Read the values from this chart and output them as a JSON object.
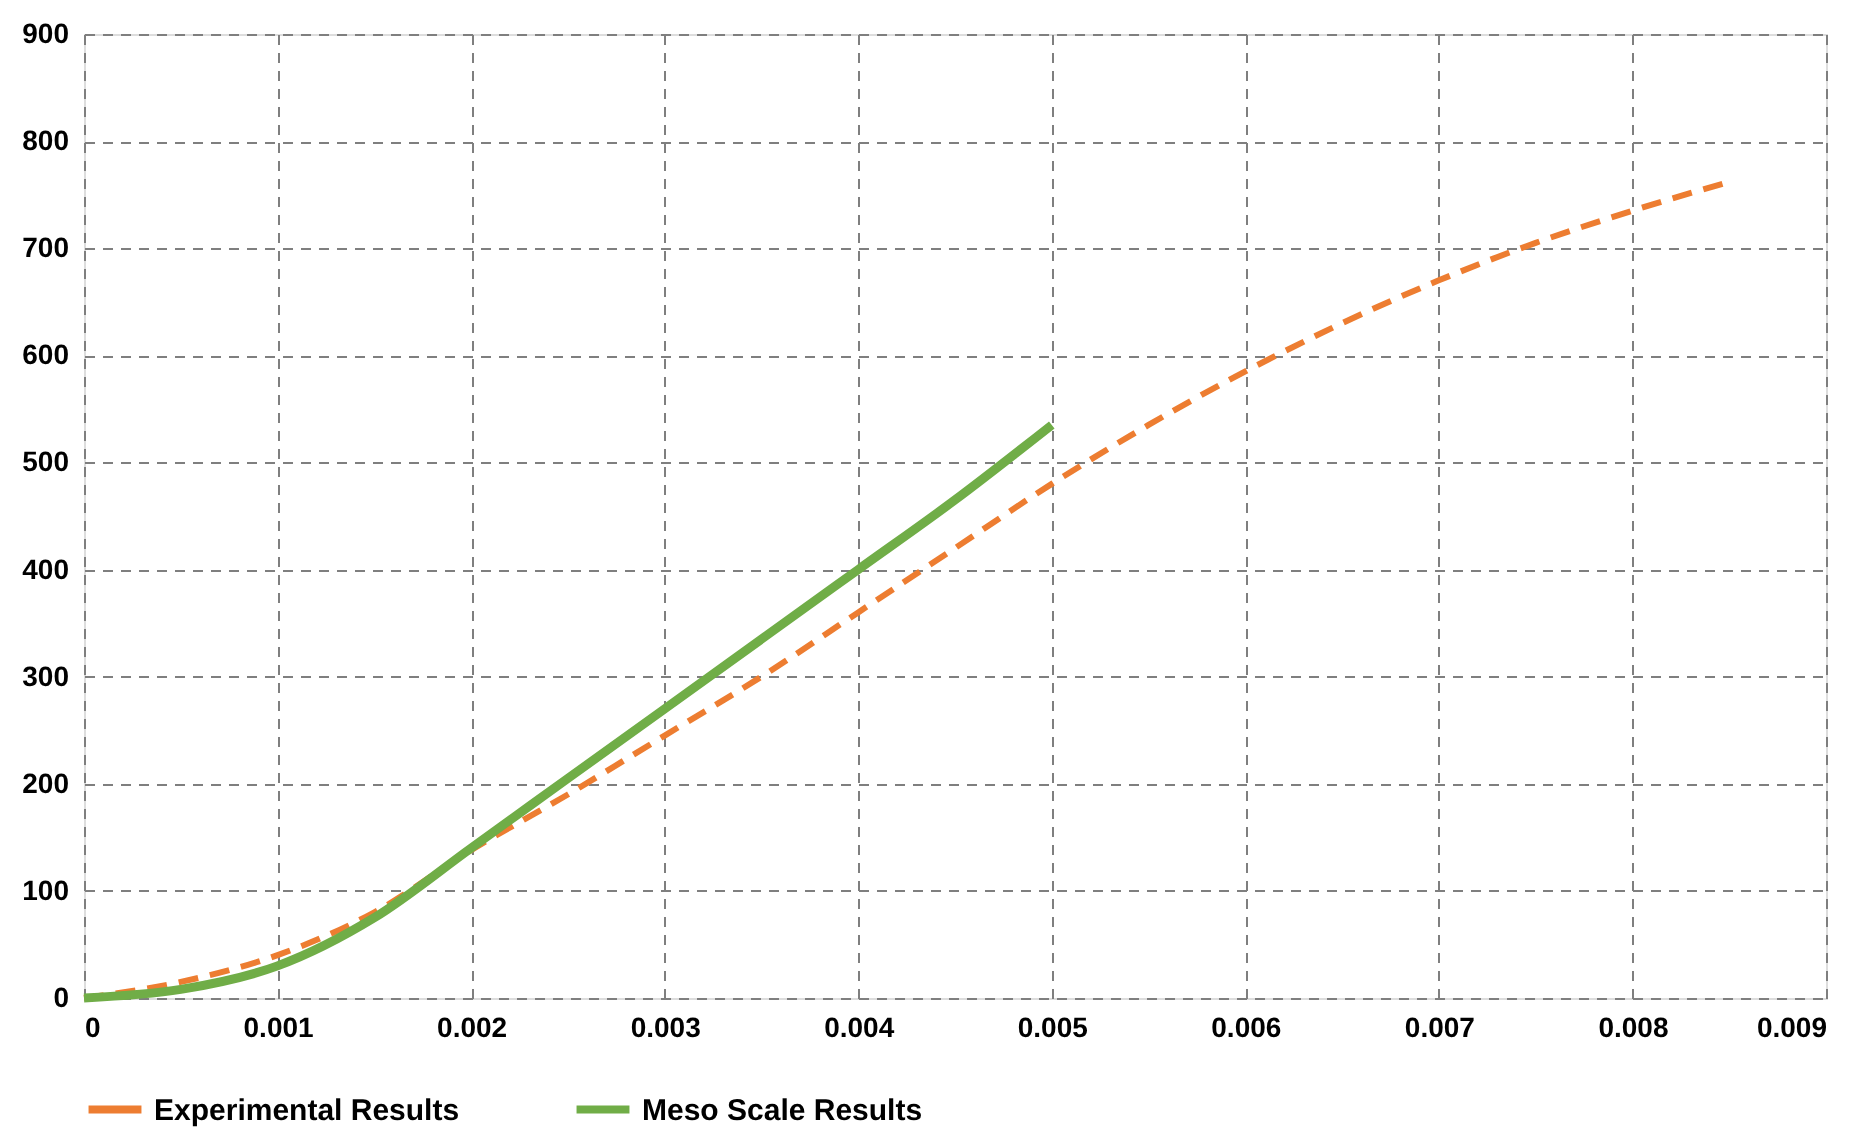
{
  "chart_data": {
    "type": "line",
    "xlim": [
      0,
      0.009
    ],
    "ylim": [
      0,
      900
    ],
    "xticks": [
      0,
      0.001,
      0.002,
      0.003,
      0.004,
      0.005,
      0.006,
      0.007,
      0.008,
      0.009
    ],
    "yticks": [
      0,
      100,
      200,
      300,
      400,
      500,
      600,
      700,
      800,
      900
    ],
    "grid": true,
    "legend": "bottom",
    "series": [
      {
        "name": "Experimental Results",
        "color": "#ed7d31",
        "line_style": "dashed",
        "x": [
          0,
          0.0005,
          0.001,
          0.0015,
          0.002,
          0.0025,
          0.003,
          0.0035,
          0.004,
          0.0045,
          0.005,
          0.0055,
          0.006,
          0.0065,
          0.007,
          0.0075,
          0.008,
          0.0085
        ],
        "values": [
          0,
          15,
          40,
          80,
          138,
          190,
          245,
          300,
          360,
          420,
          480,
          535,
          585,
          630,
          670,
          705,
          735,
          762
        ]
      },
      {
        "name": "Meso Scale Results",
        "color": "#70ad47",
        "line_style": "solid",
        "x": [
          0,
          0.0005,
          0.001,
          0.0015,
          0.002,
          0.0025,
          0.003,
          0.0035,
          0.004,
          0.0045,
          0.005
        ],
        "values": [
          0,
          8,
          30,
          75,
          140,
          205,
          270,
          335,
          400,
          465,
          535
        ]
      }
    ]
  }
}
